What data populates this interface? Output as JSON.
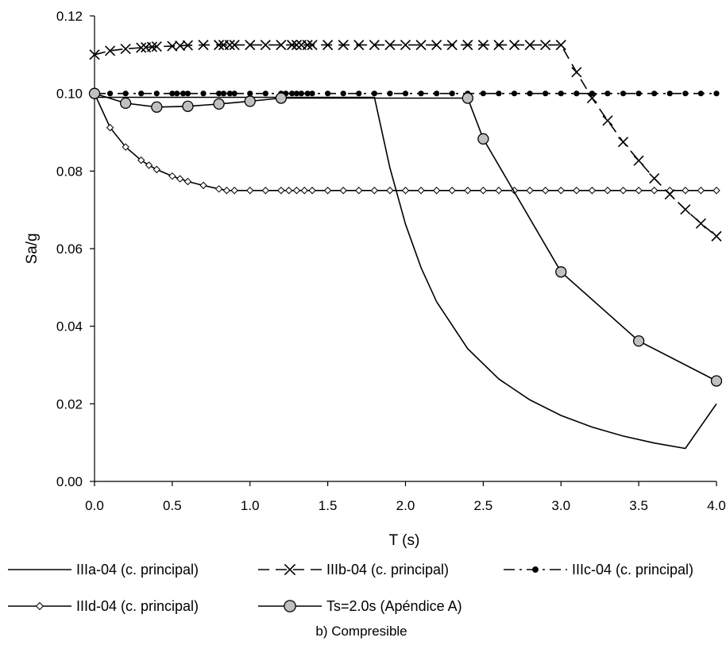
{
  "chart_data": {
    "type": "line",
    "title": "",
    "caption": "b) Compresible",
    "xlabel": "T (s)",
    "ylabel": "Sa/g",
    "xlim": [
      0,
      4.0
    ],
    "ylim": [
      0,
      0.12
    ],
    "grid": false,
    "legend_position": "bottom",
    "x_ticks": [
      "0.0",
      "0.5",
      "1.0",
      "1.5",
      "2.0",
      "2.5",
      "3.0",
      "3.5",
      "4.0"
    ],
    "y_ticks": [
      "0.00",
      "0.02",
      "0.04",
      "0.06",
      "0.08",
      "0.10",
      "0.12"
    ],
    "series": [
      {
        "name": "IIIa-04 (c. principal)",
        "line": "solid",
        "marker": "none",
        "color": "#000000",
        "x": [
          0.0,
          1.8,
          1.9,
          2.0,
          2.1,
          2.2,
          2.4,
          2.6,
          2.8,
          3.0,
          3.2,
          3.4,
          3.6,
          3.8,
          4.0
        ],
        "y": [
          0.099,
          0.099,
          0.0808,
          0.0663,
          0.0551,
          0.0463,
          0.0342,
          0.0264,
          0.021,
          0.017,
          0.014,
          0.0117,
          0.0099,
          0.0085,
          0.02
        ]
      },
      {
        "name": "IIIb-04 (c. principal)",
        "line": "dashed",
        "marker": "x",
        "color": "#000000",
        "x": [
          0.0,
          0.1,
          0.2,
          0.3,
          0.33,
          0.37,
          0.4,
          0.5,
          0.55,
          0.6,
          0.7,
          0.8,
          0.83,
          0.87,
          0.9,
          1.0,
          1.1,
          1.2,
          1.27,
          1.3,
          1.33,
          1.37,
          1.4,
          1.5,
          1.6,
          1.7,
          1.8,
          1.9,
          2.0,
          2.1,
          2.2,
          2.3,
          2.4,
          2.5,
          2.6,
          2.7,
          2.8,
          2.9,
          3.0,
          3.1,
          3.2,
          3.3,
          3.4,
          3.5,
          3.6,
          3.7,
          3.8,
          3.9,
          4.0
        ],
        "y": [
          0.11,
          0.111,
          0.1115,
          0.1118,
          0.1119,
          0.112,
          0.1121,
          0.1122,
          0.1123,
          0.1124,
          0.1125,
          0.1125,
          0.1125,
          0.1125,
          0.1125,
          0.1125,
          0.1125,
          0.1125,
          0.1125,
          0.1125,
          0.1125,
          0.1125,
          0.1125,
          0.1125,
          0.1125,
          0.1125,
          0.1125,
          0.1125,
          0.1125,
          0.1125,
          0.1125,
          0.1125,
          0.1125,
          0.1125,
          0.1125,
          0.1125,
          0.1125,
          0.1125,
          0.1125,
          0.1055,
          0.0988,
          0.093,
          0.0875,
          0.0827,
          0.0781,
          0.074,
          0.0701,
          0.0665,
          0.0632
        ]
      },
      {
        "name": "IIIc-04 (c. principal)",
        "line": "dashdot",
        "marker": "dot",
        "color": "#000000",
        "x": [
          0.0,
          0.1,
          0.2,
          0.3,
          0.4,
          0.5,
          0.53,
          0.57,
          0.6,
          0.7,
          0.8,
          0.83,
          0.87,
          0.9,
          1.0,
          1.1,
          1.2,
          1.23,
          1.27,
          1.3,
          1.33,
          1.37,
          1.4,
          1.5,
          1.6,
          1.7,
          1.8,
          1.9,
          2.0,
          2.1,
          2.2,
          2.3,
          2.4,
          2.5,
          2.6,
          2.7,
          2.8,
          2.9,
          3.0,
          3.1,
          3.2,
          3.3,
          3.4,
          3.5,
          3.6,
          3.7,
          3.8,
          3.9,
          4.0
        ],
        "y": [
          0.1,
          0.1,
          0.1,
          0.1,
          0.1,
          0.1,
          0.1,
          0.1,
          0.1,
          0.1,
          0.1,
          0.1,
          0.1,
          0.1,
          0.1,
          0.1,
          0.1,
          0.1,
          0.1,
          0.1,
          0.1,
          0.1,
          0.1,
          0.1,
          0.1,
          0.1,
          0.1,
          0.1,
          0.1,
          0.1,
          0.1,
          0.1,
          0.1,
          0.1,
          0.1,
          0.1,
          0.1,
          0.1,
          0.1,
          0.1,
          0.1,
          0.1,
          0.1,
          0.1,
          0.1,
          0.1,
          0.1,
          0.1,
          0.1
        ]
      },
      {
        "name": "IIId-04 (c. principal)",
        "line": "solid",
        "marker": "diamond",
        "color": "#000000",
        "x": [
          0.0,
          0.1,
          0.2,
          0.3,
          0.35,
          0.4,
          0.5,
          0.55,
          0.6,
          0.7,
          0.8,
          0.85,
          0.9,
          1.0,
          1.1,
          1.2,
          1.25,
          1.3,
          1.35,
          1.4,
          1.5,
          1.6,
          1.7,
          1.8,
          1.9,
          2.0,
          2.1,
          2.2,
          2.3,
          2.4,
          2.5,
          2.6,
          2.7,
          2.8,
          2.9,
          3.0,
          3.1,
          3.2,
          3.3,
          3.4,
          3.5,
          3.6,
          3.7,
          3.8,
          3.9,
          4.0
        ],
        "y": [
          0.1,
          0.0912,
          0.0862,
          0.0828,
          0.0815,
          0.0804,
          0.0787,
          0.078,
          0.0773,
          0.0763,
          0.0754,
          0.075,
          0.075,
          0.075,
          0.075,
          0.075,
          0.075,
          0.075,
          0.075,
          0.075,
          0.075,
          0.075,
          0.075,
          0.075,
          0.075,
          0.075,
          0.075,
          0.075,
          0.075,
          0.075,
          0.075,
          0.075,
          0.075,
          0.075,
          0.075,
          0.075,
          0.075,
          0.075,
          0.075,
          0.075,
          0.075,
          0.075,
          0.075,
          0.075,
          0.075,
          0.075
        ]
      },
      {
        "name": "Ts=2.0s (Apéndice A)",
        "line": "solid",
        "marker": "circle",
        "color": "#000000",
        "marker_fill": "#c0c0c0",
        "x": [
          0.0,
          0.2,
          0.4,
          0.6,
          0.8,
          1.0,
          1.2,
          2.4,
          2.5,
          3.0,
          3.5,
          4.0
        ],
        "y": [
          0.1,
          0.0975,
          0.0965,
          0.0967,
          0.0973,
          0.098,
          0.0988,
          0.0988,
          0.0883,
          0.054,
          0.0362,
          0.0259
        ]
      }
    ]
  }
}
